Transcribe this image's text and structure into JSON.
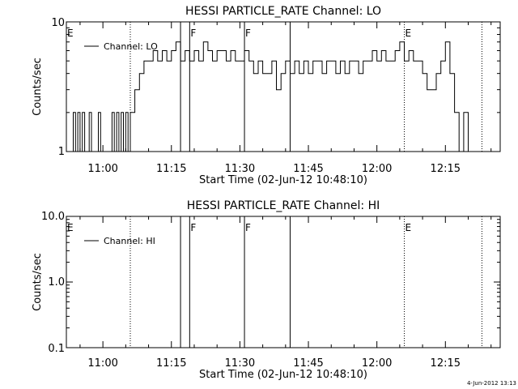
{
  "footer": {
    "timestamp": "4-Jun-2012 13:13"
  },
  "chart_data": [
    {
      "type": "line",
      "title": "HESSI PARTICLE_RATE Channel: LO",
      "xlabel": "Start Time (02-Jun-12 10:48:10)",
      "ylabel": "Counts/sec",
      "yscale": "log",
      "ylim": [
        1,
        10
      ],
      "xlim": [
        "10:52",
        "12:27"
      ],
      "x_tick_labels": [
        "11:00",
        "11:15",
        "11:30",
        "11:45",
        "12:00",
        "12:15"
      ],
      "y_tick_labels": [
        "1",
        "10"
      ],
      "legend": {
        "position": "top-left",
        "entries": [
          "Channel: LO"
        ]
      },
      "series": [
        {
          "name": "Channel: LO",
          "x": [
            "10:53",
            "10:53:30",
            "10:54",
            "10:54:30",
            "10:55",
            "10:55:30",
            "10:56",
            "10:56:30",
            "10:57",
            "10:57:30",
            "10:58",
            "10:58:30",
            "10:59",
            "10:59:30",
            "11:00",
            "11:00:30",
            "11:01",
            "11:01:30",
            "11:02",
            "11:02:30",
            "11:03",
            "11:03:30",
            "11:04",
            "11:04:30",
            "11:05",
            "11:05:30",
            "11:06",
            "11:06:30",
            "11:07",
            "11:07:30",
            "11:08",
            "11:09",
            "11:10",
            "11:11",
            "11:12",
            "11:13",
            "11:14",
            "11:15",
            "11:16",
            "11:17",
            "11:18",
            "11:19",
            "11:20",
            "11:21",
            "11:22",
            "11:23",
            "11:24",
            "11:25",
            "11:26",
            "11:27",
            "11:28",
            "11:29",
            "11:30",
            "11:31",
            "11:32",
            "11:33",
            "11:34",
            "11:35",
            "11:36",
            "11:37",
            "11:38",
            "11:39",
            "11:40",
            "11:41",
            "11:42",
            "11:43",
            "11:44",
            "11:45",
            "11:46",
            "11:47",
            "11:48",
            "11:49",
            "11:50",
            "11:51",
            "11:52",
            "11:53",
            "11:54",
            "11:55",
            "11:56",
            "11:57",
            "11:58",
            "11:59",
            "12:00",
            "12:01",
            "12:02",
            "12:03",
            "12:04",
            "12:05",
            "12:06",
            "12:07",
            "12:08",
            "12:09",
            "12:10",
            "12:11",
            "12:12",
            "12:13",
            "12:14",
            "12:15",
            "12:16",
            "12:17",
            "12:18",
            "12:19",
            "12:20",
            "12:21",
            "12:22"
          ],
          "values": [
            1,
            2,
            1,
            2,
            1,
            2,
            1,
            1,
            2,
            1,
            1,
            1,
            2,
            1,
            1,
            1,
            1,
            1,
            2,
            1,
            2,
            1,
            2,
            1,
            2,
            1,
            2,
            2,
            3,
            3,
            4,
            5,
            5,
            6,
            5,
            6,
            5,
            6,
            7,
            5,
            6,
            5,
            6,
            5,
            7,
            6,
            5,
            6,
            6,
            5,
            6,
            5,
            5,
            6,
            5,
            4,
            5,
            4,
            4,
            5,
            3,
            4,
            5,
            4,
            5,
            4,
            5,
            4,
            5,
            5,
            4,
            5,
            5,
            4,
            5,
            4,
            5,
            5,
            4,
            5,
            5,
            6,
            5,
            6,
            5,
            5,
            6,
            7,
            5,
            6,
            5,
            5,
            4,
            3,
            3,
            4,
            5,
            7,
            4,
            2,
            1,
            2,
            1,
            1,
            1
          ]
        }
      ],
      "markers": [
        {
          "time": "10:53",
          "label": "E",
          "style": "label"
        },
        {
          "time": "11:06",
          "label": "",
          "style": "dotted"
        },
        {
          "time": "11:17",
          "label": "",
          "style": "solid"
        },
        {
          "time": "11:19",
          "label": "F",
          "style": "solid"
        },
        {
          "time": "11:31",
          "label": "F",
          "style": "solid"
        },
        {
          "time": "11:41",
          "label": "",
          "style": "solid"
        },
        {
          "time": "12:06",
          "label": "E",
          "style": "dotted"
        },
        {
          "time": "12:23",
          "label": "",
          "style": "dotted"
        }
      ]
    },
    {
      "type": "line",
      "title": "HESSI PARTICLE_RATE Channel: HI",
      "xlabel": "Start Time (02-Jun-12 10:48:10)",
      "ylabel": "Counts/sec",
      "yscale": "log",
      "ylim": [
        0.1,
        10
      ],
      "xlim": [
        "10:52",
        "12:27"
      ],
      "x_tick_labels": [
        "11:00",
        "11:15",
        "11:30",
        "11:45",
        "12:00",
        "12:15"
      ],
      "y_tick_labels": [
        "0.1",
        "1.0",
        "10.0"
      ],
      "legend": {
        "position": "top-left",
        "entries": [
          "Channel: HI"
        ]
      },
      "series": [
        {
          "name": "Channel: HI",
          "x": [],
          "values": []
        }
      ],
      "markers": [
        {
          "time": "10:53",
          "label": "E",
          "style": "label"
        },
        {
          "time": "11:06",
          "label": "",
          "style": "dotted"
        },
        {
          "time": "11:17",
          "label": "",
          "style": "solid"
        },
        {
          "time": "11:19",
          "label": "F",
          "style": "solid"
        },
        {
          "time": "11:31",
          "label": "F",
          "style": "solid"
        },
        {
          "time": "11:41",
          "label": "",
          "style": "solid"
        },
        {
          "time": "12:06",
          "label": "E",
          "style": "dotted"
        },
        {
          "time": "12:23",
          "label": "",
          "style": "dotted"
        }
      ]
    }
  ]
}
